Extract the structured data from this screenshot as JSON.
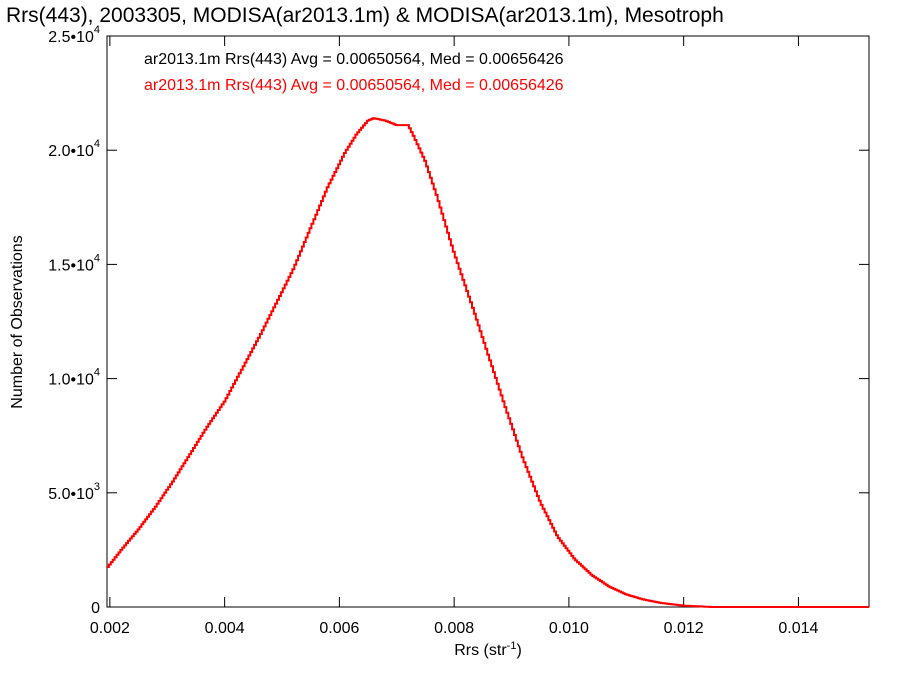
{
  "chart_data": {
    "type": "line",
    "title": "Rrs(443), 2003305, MODISA(ar2013.1m) & MODISA(ar2013.1m), Mesotroph",
    "xlabel": "Rrs (str",
    "xlabel_sup": "-1",
    "xlabel_close": ")",
    "ylabel": "Number of Observations",
    "xlim": [
      0.00195,
      0.01523
    ],
    "ylim": [
      0,
      25000
    ],
    "x_ticks": [
      {
        "value": 0.002,
        "label": "0.002"
      },
      {
        "value": 0.004,
        "label": "0.004"
      },
      {
        "value": 0.006,
        "label": "0.006"
      },
      {
        "value": 0.008,
        "label": "0.008"
      },
      {
        "value": 0.01,
        "label": "0.010"
      },
      {
        "value": 0.012,
        "label": "0.012"
      },
      {
        "value": 0.014,
        "label": "0.014"
      }
    ],
    "y_ticks": [
      {
        "value": 0,
        "label": "0",
        "exp": ""
      },
      {
        "value": 5000,
        "label": "5.0•10",
        "exp": "3"
      },
      {
        "value": 10000,
        "label": "1.0•10",
        "exp": "4"
      },
      {
        "value": 15000,
        "label": "1.5•10",
        "exp": "4"
      },
      {
        "value": 20000,
        "label": "2.0•10",
        "exp": "4"
      },
      {
        "value": 25000,
        "label": "2.5•10",
        "exp": "4"
      }
    ],
    "legend": [
      {
        "text": "ar2013.1m Rrs(443) Avg = 0.00650564, Med = 0.00656426",
        "color": "#000000"
      },
      {
        "text": "ar2013.1m Rrs(443) Avg = 0.00650564, Med = 0.00656426",
        "color": "#ff0000"
      }
    ],
    "legend_position": "top-left",
    "series": [
      {
        "color": "#ff0000",
        "style": "step",
        "x": [
          0.00195,
          0.0022,
          0.0025,
          0.0028,
          0.0031,
          0.0034,
          0.0037,
          0.004,
          0.0043,
          0.0046,
          0.0049,
          0.0052,
          0.0055,
          0.0058,
          0.0061,
          0.0063,
          0.0065,
          0.0066,
          0.0068,
          0.007,
          0.0072,
          0.0073,
          0.0075,
          0.0077,
          0.008,
          0.0083,
          0.0086,
          0.0089,
          0.0092,
          0.0095,
          0.0098,
          0.0101,
          0.0104,
          0.0107,
          0.011,
          0.0113,
          0.0116,
          0.012,
          0.0125,
          0.013,
          0.0135,
          0.014,
          0.0145,
          0.0152
        ],
        "y": [
          1700,
          2500,
          3400,
          4400,
          5500,
          6700,
          7900,
          9000,
          10400,
          11800,
          13300,
          14800,
          16600,
          18400,
          19900,
          20700,
          21300,
          21400,
          21300,
          21100,
          21100,
          20600,
          19500,
          18000,
          15500,
          13300,
          11000,
          8700,
          6500,
          4600,
          3100,
          2100,
          1400,
          900,
          550,
          330,
          180,
          60,
          0,
          0,
          0,
          0,
          0,
          0
        ]
      }
    ]
  }
}
